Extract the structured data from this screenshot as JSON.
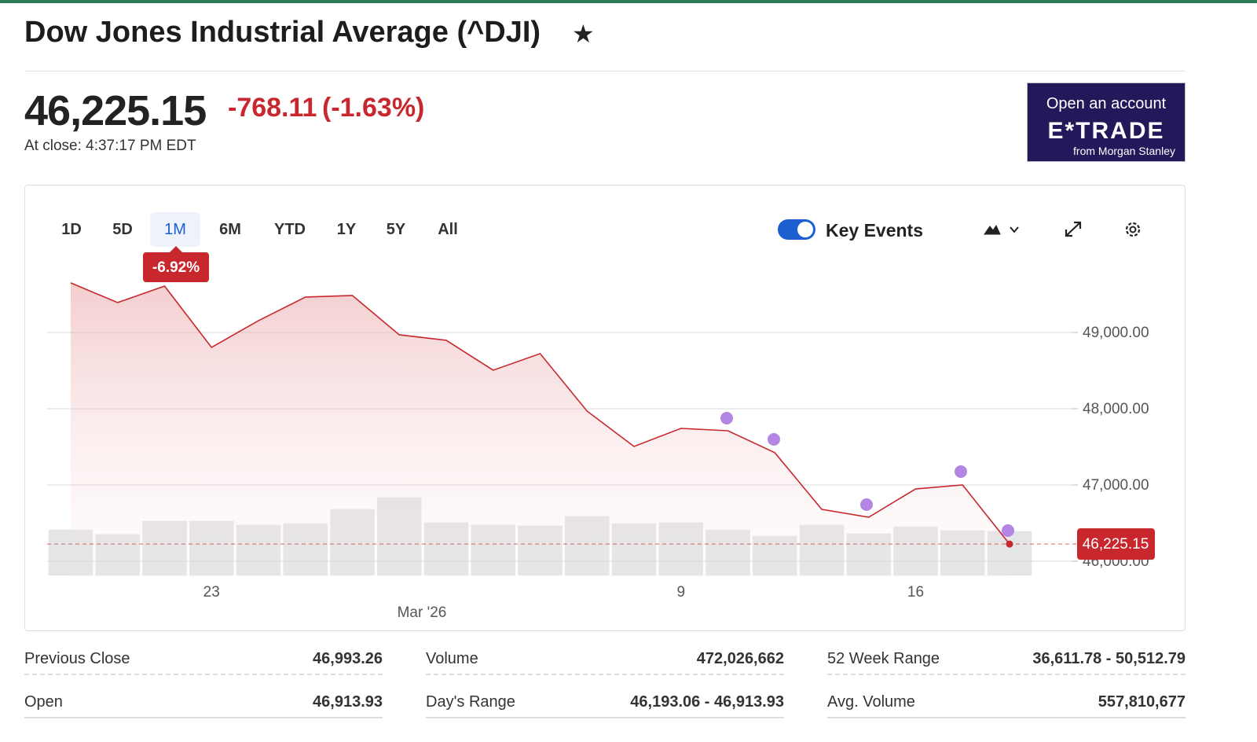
{
  "header": {
    "title": "Dow Jones Industrial Average (^DJI)"
  },
  "quote": {
    "price": "46,225.15",
    "change": "-768.11",
    "change_percent": "(-1.63%)",
    "close_time": "At close: 4:37:17 PM EDT"
  },
  "ad": {
    "line1": "Open an account",
    "brand": "E*TRADE",
    "line2": "from Morgan Stanley"
  },
  "controls": {
    "ranges": [
      "1D",
      "5D",
      "1M",
      "6M",
      "YTD",
      "1Y",
      "5Y",
      "All"
    ],
    "selected": "1M",
    "key_events": "Key Events"
  },
  "chart_data": {
    "type": "line",
    "categories": [
      null,
      null,
      null,
      "23",
      null,
      null,
      null,
      null,
      null,
      null,
      null,
      null,
      null,
      "9",
      null,
      null,
      null,
      null,
      "16",
      null,
      null
    ],
    "values": [
      49650,
      49392,
      49608,
      48804,
      49155,
      49464,
      49485,
      48969,
      48897,
      48505,
      48722,
      47969,
      47505,
      47742,
      47711,
      47423,
      46680,
      46577,
      46948,
      47000,
      46225.15
    ],
    "volumes": [
      488,
      440,
      578,
      578,
      537,
      553,
      700,
      822,
      562,
      537,
      529,
      627,
      553,
      562,
      488,
      423,
      537,
      448,
      521,
      480,
      472
    ],
    "color": "#c8282d",
    "volume_color": "#e2e3e5",
    "ylim": [
      45800,
      49850
    ],
    "yticks": [
      {
        "value": 46000,
        "label": "46,000.00"
      },
      {
        "value": 47000,
        "label": "47,000.00"
      },
      {
        "value": 48000,
        "label": "48,000.00"
      },
      {
        "value": 49000,
        "label": "49,000.00"
      }
    ],
    "y2lim": [
      0,
      3000
    ],
    "grid": true,
    "change_label": "-6.92%",
    "last_label": "46,225.15",
    "period_label": "Mar '26"
  },
  "stats": [
    {
      "label": "Previous Close",
      "value": "46,993.26"
    },
    {
      "label": "Volume",
      "value": "472,026,662"
    },
    {
      "label": "52 Week Range",
      "value": "36,611.78 - 50,512.79"
    },
    {
      "label": "Open",
      "value": "46,913.93"
    },
    {
      "label": "Day's Range",
      "value": "46,193.06 - 46,913.93"
    },
    {
      "label": "Avg. Volume",
      "value": "557,810,677"
    }
  ]
}
